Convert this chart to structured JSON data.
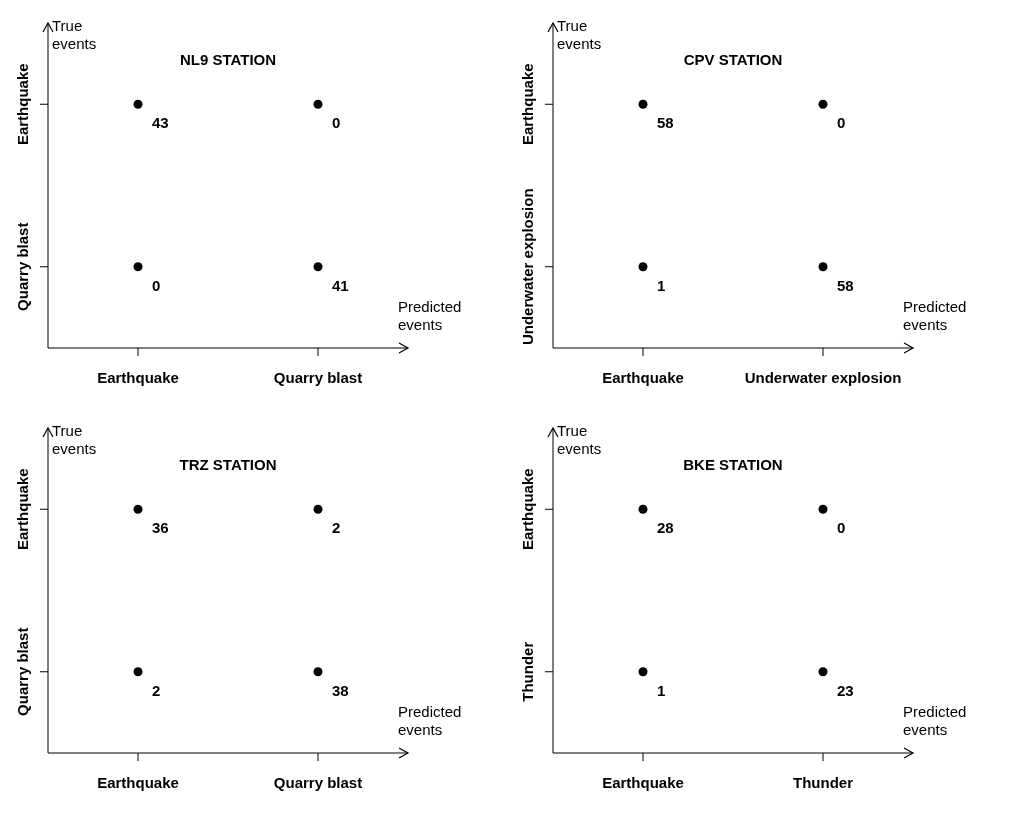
{
  "chart_data": [
    {
      "type": "heatmap",
      "title": "NL9 STATION",
      "xlabel": "Predicted events",
      "ylabel": "True events",
      "categories": [
        "Earthquake",
        "Quarry blast"
      ],
      "y_categories": [
        "Earthquake",
        "Quarry blast"
      ],
      "cells": [
        [
          43,
          0
        ],
        [
          0,
          41
        ]
      ],
      "data_labels": true
    },
    {
      "type": "heatmap",
      "title": "CPV STATION",
      "xlabel": "Predicted events",
      "ylabel": "True events",
      "categories": [
        "Earthquake",
        "Underwater explosion"
      ],
      "y_categories": [
        "Earthquake",
        "Underwater explosion"
      ],
      "cells": [
        [
          58,
          0
        ],
        [
          1,
          58
        ]
      ],
      "data_labels": true
    },
    {
      "type": "heatmap",
      "title": "TRZ STATION",
      "xlabel": "Predicted events",
      "ylabel": "True events",
      "categories": [
        "Earthquake",
        "Quarry blast"
      ],
      "y_categories": [
        "Earthquake",
        "Quarry blast"
      ],
      "cells": [
        [
          36,
          2
        ],
        [
          2,
          38
        ]
      ],
      "data_labels": true
    },
    {
      "type": "heatmap",
      "title": "BKE STATION",
      "xlabel": "Predicted events",
      "ylabel": "True events",
      "categories": [
        "Earthquake",
        "Thunder"
      ],
      "y_categories": [
        "Earthquake",
        "Thunder"
      ],
      "cells": [
        [
          28,
          0
        ],
        [
          1,
          23
        ]
      ],
      "data_labels": true
    }
  ]
}
